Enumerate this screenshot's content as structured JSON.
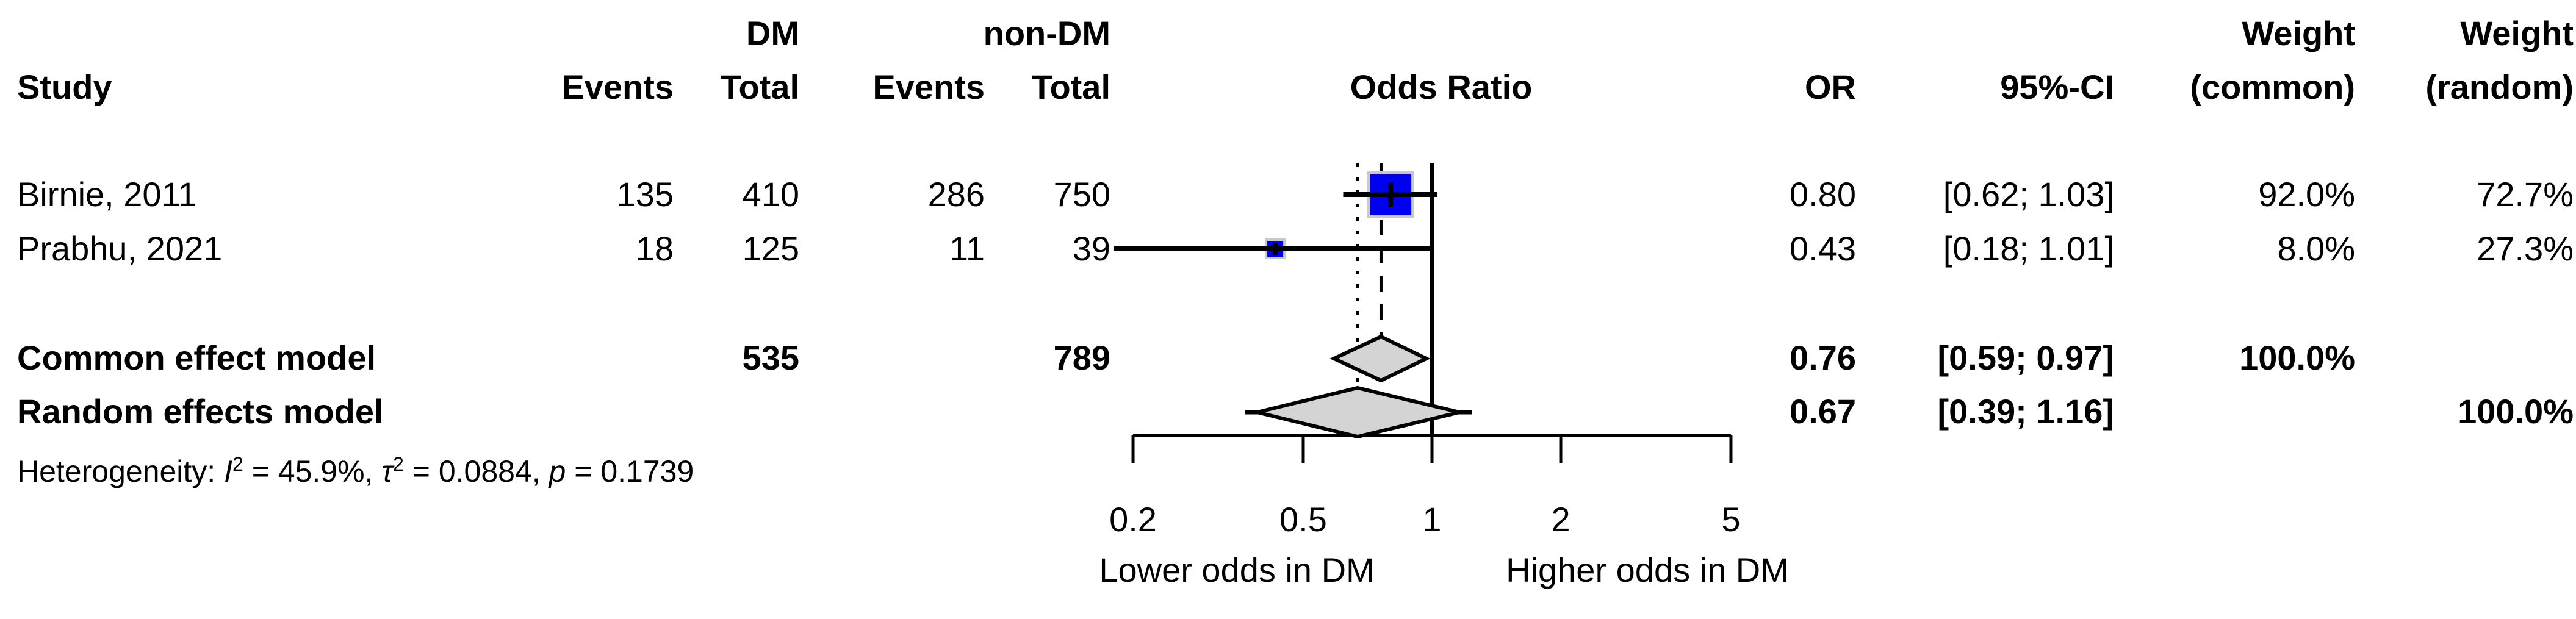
{
  "header": {
    "group_dm": "DM",
    "group_non_dm": "non-DM",
    "weight_top_common": "Weight",
    "weight_top_random": "Weight",
    "study": "Study",
    "events_dm": "Events",
    "total_dm": "Total",
    "events_non_dm": "Events",
    "total_non_dm": "Total",
    "odds_ratio": "Odds Ratio",
    "or": "OR",
    "ci": "95%-CI",
    "weight_common": "(common)",
    "weight_random": "(random)"
  },
  "rows": [
    {
      "study": "Birnie, 2011",
      "dm_events": "135",
      "dm_total": "410",
      "non_dm_events": "286",
      "non_dm_total": "750",
      "or": "0.80",
      "ci": "[0.62; 1.03]",
      "weight_common": "92.0%",
      "weight_random": "72.7%"
    },
    {
      "study": "Prabhu, 2021",
      "dm_events": "18",
      "dm_total": "125",
      "non_dm_events": "11",
      "non_dm_total": "39",
      "or": "0.43",
      "ci": "[0.18; 1.01]",
      "weight_common": "8.0%",
      "weight_random": "27.3%"
    }
  ],
  "common_row": {
    "label": "Common effect model",
    "dm_total": "535",
    "non_dm_total": "789",
    "or": "0.76",
    "ci": "[0.59; 0.97]",
    "weight_common": "100.0%"
  },
  "random_row": {
    "label": "Random effects model",
    "or": "0.67",
    "ci": "[0.39; 1.16]",
    "weight_random": "100.0%"
  },
  "heterogeneity": {
    "prefix": "Heterogeneity: ",
    "i_symbol": "I",
    "sup": "2",
    "i2_rest": " = 45.9%, ",
    "tau_symbol": "τ",
    "tau_rest": " = 0.0884, ",
    "p_symbol": "p",
    "p_rest": " = 0.1739"
  },
  "axis": {
    "ticks": [
      "0.2",
      "0.5",
      "1",
      "2",
      "5"
    ],
    "left_label": "Lower odds in DM",
    "right_label": "Higher odds in DM"
  },
  "chart_data": {
    "type": "forest",
    "effect_measure": "Odds Ratio",
    "x_scale": "log",
    "x_ticks": [
      0.2,
      0.5,
      1,
      2,
      5
    ],
    "ref_line": 1,
    "studies": [
      {
        "name": "Birnie, 2011",
        "dm_events": 135,
        "dm_total": 410,
        "non_dm_events": 286,
        "non_dm_total": 750,
        "or": 0.8,
        "ci_low": 0.62,
        "ci_high": 1.03,
        "weight_common_pct": 92.0,
        "weight_random_pct": 72.7
      },
      {
        "name": "Prabhu, 2021",
        "dm_events": 18,
        "dm_total": 125,
        "non_dm_events": 11,
        "non_dm_total": 39,
        "or": 0.43,
        "ci_low": 0.18,
        "ci_high": 1.01,
        "weight_common_pct": 8.0,
        "weight_random_pct": 27.3
      }
    ],
    "pooled": [
      {
        "name": "Common effect model",
        "dm_total": 535,
        "non_dm_total": 789,
        "or": 0.76,
        "ci_low": 0.59,
        "ci_high": 0.97,
        "weight_common_pct": 100.0
      },
      {
        "name": "Random effects model",
        "or": 0.67,
        "ci_low": 0.39,
        "ci_high": 1.16,
        "weight_random_pct": 100.0
      }
    ],
    "heterogeneity": {
      "I2_pct": 45.9,
      "tau2": 0.0884,
      "p": 0.1739
    },
    "x_axis_labels": {
      "left": "Lower odds in DM",
      "right": "Higher odds in DM"
    },
    "colors": {
      "square_fill": "#0000ee",
      "square_border": "#c9c9c9",
      "diamond_fill": "#d4d4d4",
      "line": "#000000"
    }
  }
}
